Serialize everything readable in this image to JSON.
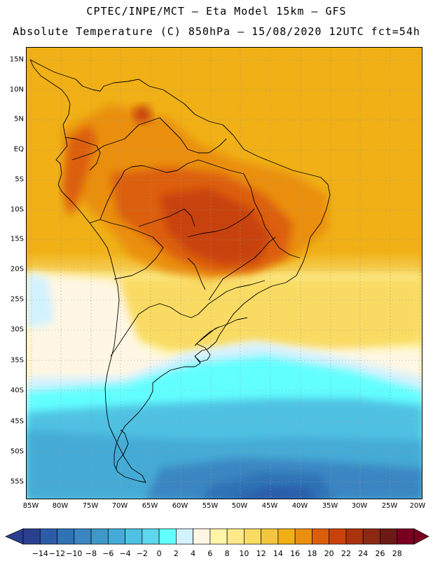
{
  "header": {
    "title_line1": "CPTEC/INPE/MCT –  Eta Model 15km – GFS",
    "title_line2": "Absolute Temperature (C) 850hPa – 15/08/2020 12UTC fct=54h"
  },
  "map": {
    "latitude_labels": [
      "15N",
      "10N",
      "5N",
      "EQ",
      "5S",
      "10S",
      "15S",
      "20S",
      "25S",
      "30S",
      "35S",
      "40S",
      "45S",
      "50S",
      "55S"
    ],
    "longitude_labels": [
      "85W",
      "80W",
      "75W",
      "70W",
      "65W",
      "60W",
      "55W",
      "50W",
      "45W",
      "40W",
      "35W",
      "30W",
      "25W",
      "20W"
    ],
    "gridlines": "dotted"
  },
  "colorbar": {
    "labels": [
      "-14",
      "-12",
      "-10",
      "-8",
      "-6",
      "-4",
      "-2",
      "0",
      "2",
      "4",
      "6",
      "8",
      "10",
      "12",
      "14",
      "16",
      "18",
      "20",
      "22",
      "24",
      "26",
      "28"
    ],
    "colors": [
      "#2a3f8f",
      "#2c5ca8",
      "#2f72b6",
      "#3a86c2",
      "#3e98c8",
      "#44abd6",
      "#4fc1e3",
      "#5ed6ee",
      "#62ffff",
      "#d2f2ff",
      "#fff7e4",
      "#fff4a8",
      "#fde98a",
      "#f9db63",
      "#f4c53f",
      "#f0b016",
      "#ea8f0f",
      "#dc5e0a",
      "#c8430b",
      "#aa330d",
      "#8c2813",
      "#6d1a16",
      "#7a0020"
    ],
    "under_color": "#2a3f8f",
    "over_color": "#7a0020"
  }
}
